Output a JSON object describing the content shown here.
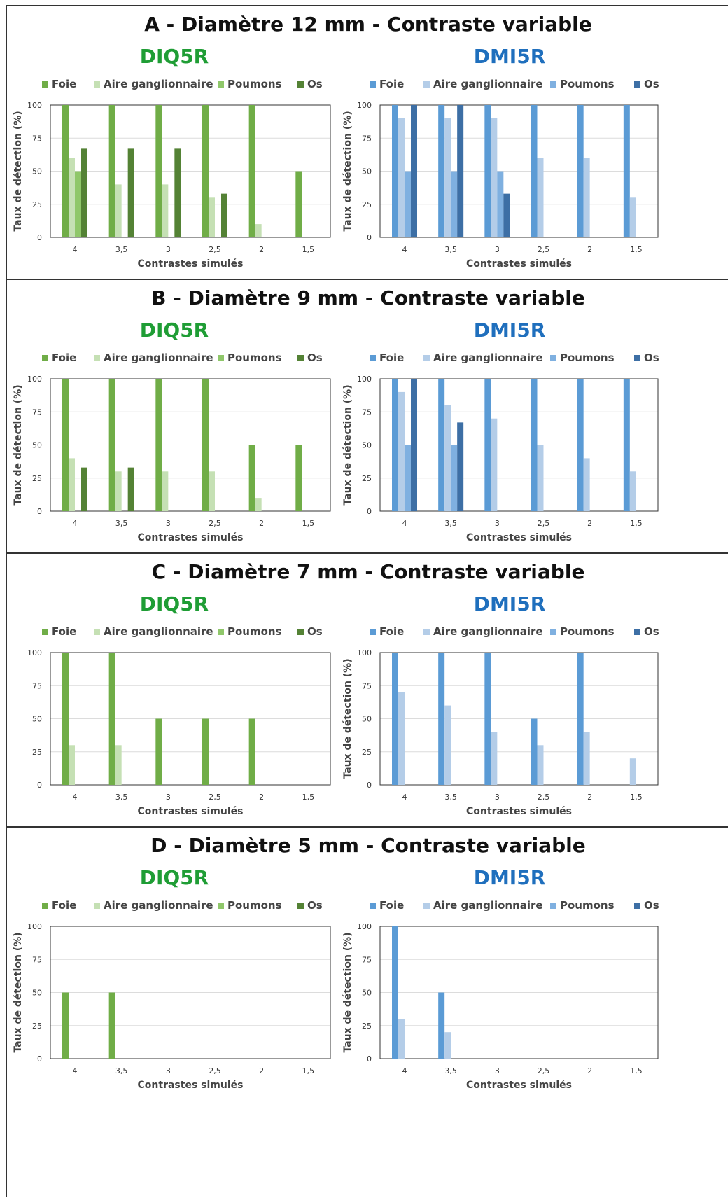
{
  "colors": {
    "diq": {
      "title": "#1f9d35",
      "series": [
        "#70ad47",
        "#c5e0b4",
        "#8fc76a",
        "#548235"
      ]
    },
    "dmi": {
      "title": "#1f6fbd",
      "series": [
        "#5b9bd5",
        "#b4cde8",
        "#7fb0e0",
        "#3d6fa5"
      ]
    }
  },
  "panels": [
    {
      "heading": "A - Diamètre 12 mm - Contraste variable"
    },
    {
      "heading": "B - Diamètre 9 mm - Contraste variable"
    },
    {
      "heading": "C - Diamètre 7 mm - Contraste variable"
    },
    {
      "heading": "D - Diamètre 5 mm - Contraste variable"
    }
  ],
  "subtitles": {
    "diq": "DIQ5R",
    "dmi": "DMI5R"
  },
  "chart_data": [
    {
      "type": "bar",
      "panel": "A",
      "title": "DIQ5R",
      "xlabel": "Contrastes simulés",
      "ylabel": "Taux de détection (%)",
      "ylim": [
        0,
        100
      ],
      "yticks": [
        "0",
        "25",
        "50",
        "75",
        "100"
      ],
      "grid": true,
      "legend_position": "top",
      "categories": [
        "4",
        "3,5",
        "3",
        "2,5",
        "2",
        "1,5"
      ],
      "series": [
        {
          "name": "Foie",
          "values": [
            100,
            100,
            100,
            100,
            100,
            50
          ]
        },
        {
          "name": "Aire ganglionnaire",
          "values": [
            60,
            40,
            40,
            30,
            10,
            0
          ]
        },
        {
          "name": "Poumons",
          "values": [
            50,
            0,
            0,
            0,
            0,
            0
          ]
        },
        {
          "name": "Os",
          "values": [
            67,
            67,
            67,
            33,
            0,
            0
          ]
        }
      ]
    },
    {
      "type": "bar",
      "panel": "A",
      "title": "DMI5R",
      "xlabel": "Contrastes simulés",
      "ylabel": "Taux de détection (%)",
      "ylim": [
        0,
        100
      ],
      "yticks": [
        "0",
        "25",
        "50",
        "75",
        "100"
      ],
      "grid": true,
      "legend_position": "top",
      "categories": [
        "4",
        "3,5",
        "3",
        "2,5",
        "2",
        "1,5"
      ],
      "series": [
        {
          "name": "Foie",
          "values": [
            100,
            100,
            100,
            100,
            100,
            100
          ]
        },
        {
          "name": "Aire ganglionnaire",
          "values": [
            90,
            90,
            90,
            60,
            60,
            30
          ]
        },
        {
          "name": "Poumons",
          "values": [
            50,
            50,
            50,
            0,
            0,
            0
          ]
        },
        {
          "name": "Os",
          "values": [
            100,
            100,
            33,
            0,
            0,
            0
          ]
        }
      ]
    },
    {
      "type": "bar",
      "panel": "B",
      "title": "DIQ5R",
      "xlabel": "Contrastes simulés",
      "ylabel": "Taux de détection (%)",
      "ylim": [
        0,
        100
      ],
      "yticks": [
        "0",
        "25",
        "50",
        "75",
        "100"
      ],
      "grid": true,
      "legend_position": "top",
      "categories": [
        "4",
        "3,5",
        "3",
        "2,5",
        "2",
        "1,5"
      ],
      "series": [
        {
          "name": "Foie",
          "values": [
            100,
            100,
            100,
            100,
            50,
            50
          ]
        },
        {
          "name": "Aire ganglionnaire",
          "values": [
            40,
            30,
            30,
            30,
            10,
            0
          ]
        },
        {
          "name": "Poumons",
          "values": [
            0,
            0,
            0,
            0,
            0,
            0
          ]
        },
        {
          "name": "Os",
          "values": [
            33,
            33,
            0,
            0,
            0,
            0
          ]
        }
      ]
    },
    {
      "type": "bar",
      "panel": "B",
      "title": "DMI5R",
      "xlabel": "Contrastes simulés",
      "ylabel": "Taux de détection (%)",
      "ylim": [
        0,
        100
      ],
      "yticks": [
        "0",
        "25",
        "50",
        "75",
        "100"
      ],
      "grid": true,
      "legend_position": "top",
      "categories": [
        "4",
        "3,5",
        "3",
        "2,5",
        "2",
        "1,5"
      ],
      "series": [
        {
          "name": "Foie",
          "values": [
            100,
            100,
            100,
            100,
            100,
            100
          ]
        },
        {
          "name": "Aire ganglionnaire",
          "values": [
            90,
            80,
            70,
            50,
            40,
            30
          ]
        },
        {
          "name": "Poumons",
          "values": [
            50,
            50,
            0,
            0,
            0,
            0
          ]
        },
        {
          "name": "Os",
          "values": [
            100,
            67,
            0,
            0,
            0,
            0
          ]
        }
      ]
    },
    {
      "type": "bar",
      "panel": "C",
      "title": "DIQ5R",
      "xlabel": "Contrastes simulés",
      "ylabel": "",
      "ylim": [
        0,
        100
      ],
      "yticks": [
        "0",
        "25",
        "50",
        "75",
        "100"
      ],
      "grid": true,
      "legend_position": "top",
      "categories": [
        "4",
        "3,5",
        "3",
        "2,5",
        "2",
        "1,5"
      ],
      "series": [
        {
          "name": "Foie",
          "values": [
            100,
            100,
            50,
            50,
            50,
            0
          ]
        },
        {
          "name": "Aire ganglionnaire",
          "values": [
            30,
            30,
            0,
            0,
            0,
            0
          ]
        },
        {
          "name": "Poumons",
          "values": [
            0,
            0,
            0,
            0,
            0,
            0
          ]
        },
        {
          "name": "Os",
          "values": [
            0,
            0,
            0,
            0,
            0,
            0
          ]
        }
      ]
    },
    {
      "type": "bar",
      "panel": "C",
      "title": "DMI5R",
      "xlabel": "Contrastes simulés",
      "ylabel": "Taux de détection (%)",
      "ylim": [
        0,
        100
      ],
      "yticks": [
        "0",
        "25",
        "50",
        "75",
        "100"
      ],
      "grid": true,
      "legend_position": "top",
      "categories": [
        "4",
        "3,5",
        "3",
        "2,5",
        "2",
        "1,5"
      ],
      "series": [
        {
          "name": "Foie",
          "values": [
            100,
            100,
            100,
            50,
            100,
            0
          ]
        },
        {
          "name": "Aire ganglionnaire",
          "values": [
            70,
            60,
            40,
            30,
            40,
            20
          ]
        },
        {
          "name": "Poumons",
          "values": [
            0,
            0,
            0,
            0,
            0,
            0
          ]
        },
        {
          "name": "Os",
          "values": [
            0,
            0,
            0,
            0,
            0,
            0
          ]
        }
      ]
    },
    {
      "type": "bar",
      "panel": "D",
      "title": "DIQ5R",
      "xlabel": "Contrastes simulés",
      "ylabel": "Taux de détection (%)",
      "ylim": [
        0,
        100
      ],
      "yticks": [
        "0",
        "25",
        "50",
        "75",
        "100"
      ],
      "grid": true,
      "legend_position": "top",
      "categories": [
        "4",
        "3,5",
        "3",
        "2,5",
        "2",
        "1,5"
      ],
      "series": [
        {
          "name": "Foie",
          "values": [
            50,
            50,
            0,
            0,
            0,
            0
          ]
        },
        {
          "name": "Aire ganglionnaire",
          "values": [
            0,
            0,
            0,
            0,
            0,
            0
          ]
        },
        {
          "name": "Poumons",
          "values": [
            0,
            0,
            0,
            0,
            0,
            0
          ]
        },
        {
          "name": "Os",
          "values": [
            0,
            0,
            0,
            0,
            0,
            0
          ]
        }
      ]
    },
    {
      "type": "bar",
      "panel": "D",
      "title": "DMI5R",
      "xlabel": "Contrastes simulés",
      "ylabel": "Taux de détection (%)",
      "ylim": [
        0,
        100
      ],
      "yticks": [
        "0",
        "25",
        "50",
        "75",
        "100"
      ],
      "grid": true,
      "legend_position": "top",
      "categories": [
        "4",
        "3,5",
        "3",
        "2,5",
        "2",
        "1,5"
      ],
      "series": [
        {
          "name": "Foie",
          "values": [
            100,
            50,
            0,
            0,
            0,
            0
          ]
        },
        {
          "name": "Aire ganglionnaire",
          "values": [
            30,
            20,
            0,
            0,
            0,
            0
          ]
        },
        {
          "name": "Poumons",
          "values": [
            0,
            0,
            0,
            0,
            0,
            0
          ]
        },
        {
          "name": "Os",
          "values": [
            0,
            0,
            0,
            0,
            0,
            0
          ]
        }
      ]
    }
  ]
}
